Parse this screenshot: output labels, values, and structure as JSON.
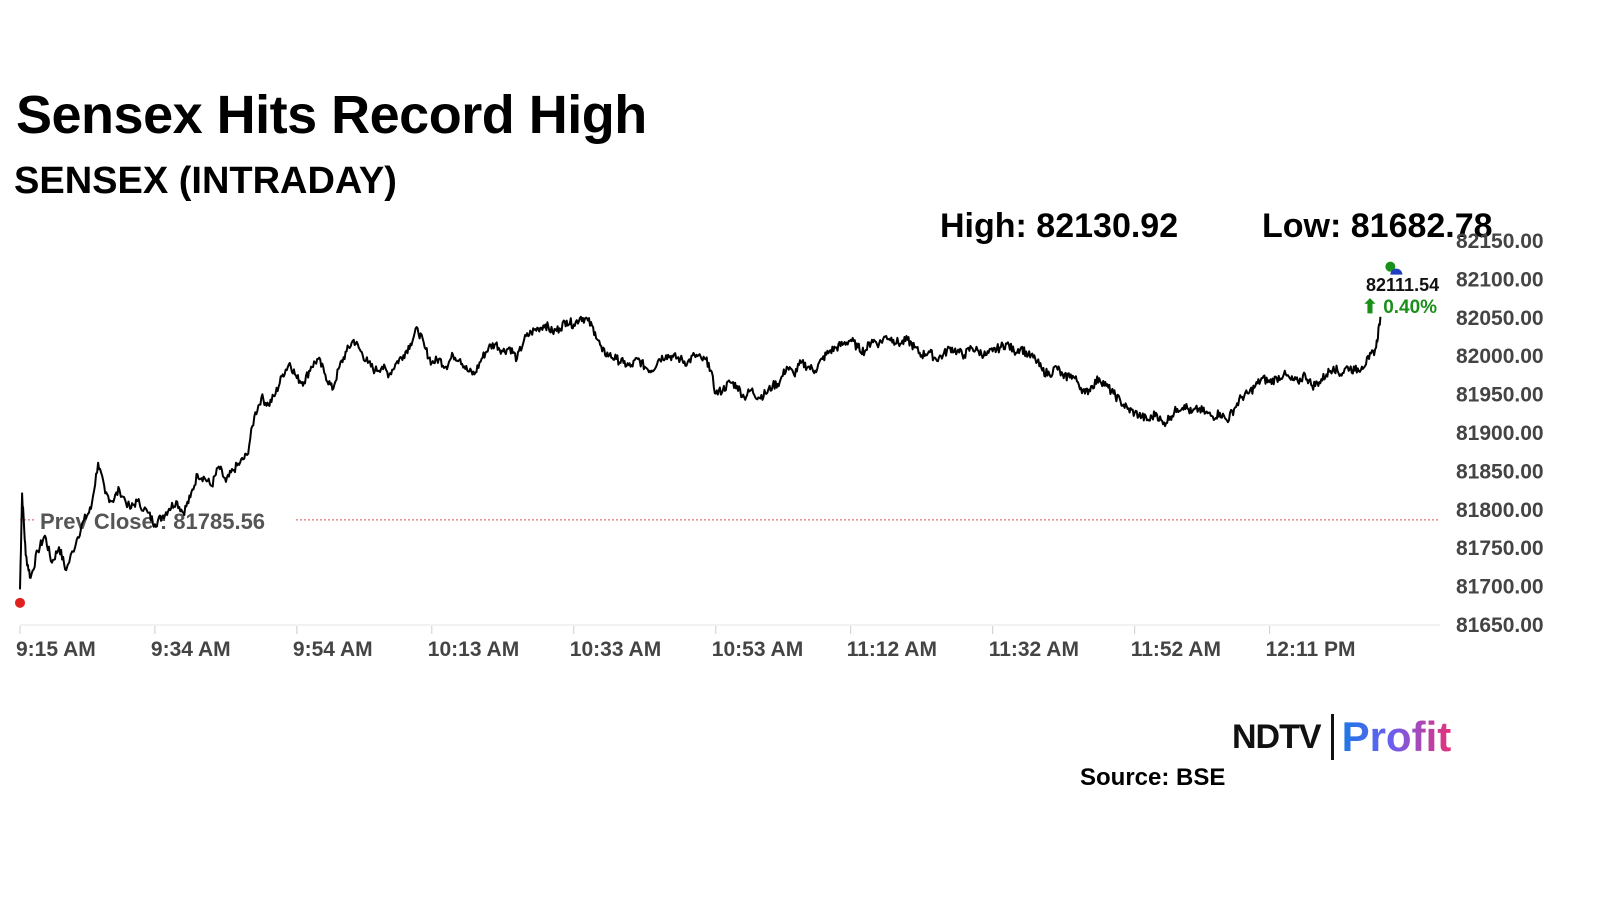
{
  "header": {
    "title": "Sensex Hits Record High",
    "subtitle": "SENSEX (INTRADAY)",
    "high": "High: 82130.92",
    "low": "Low: 81682.78"
  },
  "current": {
    "value": "82111.54",
    "change": "⬆ 0.40%"
  },
  "prev_close_label": "Prev Close : 81785.56",
  "footer": {
    "logo_ndtv": "NDTV",
    "logo_profit": "Profit",
    "source": "Source: BSE"
  },
  "colors": {
    "line": "#000000",
    "prev_close": "#d9534f",
    "up": "#1a8f1a",
    "open_dot": "#e0201f",
    "last_dot_green": "#1a8f1a",
    "last_dot_blue": "#1f3fbf",
    "axis_text": "#444444"
  },
  "chart_data": {
    "type": "line",
    "title": "SENSEX (INTRADAY)",
    "xlabel": "",
    "ylabel": "",
    "ylim": [
      81650,
      82150
    ],
    "y_ticks": [
      "81650.00",
      "81700.00",
      "81750.00",
      "81800.00",
      "81850.00",
      "81900.00",
      "81950.00",
      "82000.00",
      "82050.00",
      "82100.00",
      "82150.00"
    ],
    "x_ticks": [
      "9:15 AM",
      "9:34 AM",
      "9:54 AM",
      "10:13 AM",
      "10:33 AM",
      "10:53 AM",
      "11:12 AM",
      "11:32 AM",
      "11:52 AM",
      "12:11 PM"
    ],
    "x_tick_minutes": [
      0,
      19,
      39,
      58,
      78,
      98,
      117,
      137,
      157,
      176
    ],
    "xlim_minutes": [
      0,
      200
    ],
    "prev_close": 81785.56,
    "high": 82130.92,
    "low": 81682.78,
    "last": 82111.54,
    "change_pct": 0.4,
    "series": [
      {
        "points": [
          [
            0,
            81695
          ],
          [
            0.3,
            81820
          ],
          [
            0.8,
            81740
          ],
          [
            1.5,
            81710
          ],
          [
            2.5,
            81745
          ],
          [
            3.5,
            81765
          ],
          [
            4.5,
            81730
          ],
          [
            5.5,
            81750
          ],
          [
            6.5,
            81720
          ],
          [
            8,
            81760
          ],
          [
            9,
            81785
          ],
          [
            10,
            81800
          ],
          [
            11,
            81860
          ],
          [
            12,
            81820
          ],
          [
            13,
            81810
          ],
          [
            14,
            81825
          ],
          [
            15.5,
            81800
          ],
          [
            16.5,
            81810
          ],
          [
            18,
            81795
          ],
          [
            19,
            81780
          ],
          [
            20,
            81790
          ],
          [
            21,
            81800
          ],
          [
            22,
            81810
          ],
          [
            23,
            81795
          ],
          [
            24,
            81815
          ],
          [
            25,
            81845
          ],
          [
            26,
            81840
          ],
          [
            27,
            81830
          ],
          [
            28,
            81855
          ],
          [
            29,
            81835
          ],
          [
            30,
            81850
          ],
          [
            31,
            81860
          ],
          [
            32,
            81870
          ],
          [
            33,
            81920
          ],
          [
            34,
            81945
          ],
          [
            35,
            81935
          ],
          [
            36,
            81950
          ],
          [
            37,
            81975
          ],
          [
            38,
            81990
          ],
          [
            39,
            81970
          ],
          [
            40,
            81965
          ],
          [
            41,
            81985
          ],
          [
            42,
            81995
          ],
          [
            43,
            81975
          ],
          [
            44,
            81955
          ],
          [
            45,
            81985
          ],
          [
            46,
            82005
          ],
          [
            47,
            82020
          ],
          [
            48,
            82005
          ],
          [
            49,
            81990
          ],
          [
            50,
            81980
          ],
          [
            51,
            81985
          ],
          [
            52,
            81975
          ],
          [
            53,
            81990
          ],
          [
            54,
            82000
          ],
          [
            55,
            82015
          ],
          [
            56,
            82035
          ],
          [
            57,
            82010
          ],
          [
            58,
            81990
          ],
          [
            59,
            81995
          ],
          [
            60,
            81985
          ],
          [
            61,
            82000
          ],
          [
            62,
            81995
          ],
          [
            63,
            81980
          ],
          [
            64,
            81975
          ],
          [
            65,
            81995
          ],
          [
            66,
            82010
          ],
          [
            67,
            82015
          ],
          [
            68,
            82005
          ],
          [
            69,
            82010
          ],
          [
            70,
            81995
          ],
          [
            71,
            82020
          ],
          [
            72,
            82030
          ],
          [
            73,
            82035
          ],
          [
            74,
            82040
          ],
          [
            75,
            82030
          ],
          [
            76,
            82035
          ],
          [
            77,
            82045
          ],
          [
            78,
            82040
          ],
          [
            79,
            82050
          ],
          [
            80,
            82045
          ],
          [
            81,
            82030
          ],
          [
            82,
            82005
          ],
          [
            83,
            82000
          ],
          [
            84,
            81995
          ],
          [
            85,
            81990
          ],
          [
            86,
            81985
          ],
          [
            87,
            81995
          ],
          [
            88,
            81985
          ],
          [
            89,
            81980
          ],
          [
            90,
            81995
          ],
          [
            91,
            82000
          ],
          [
            92,
            81998
          ],
          [
            93,
            81995
          ],
          [
            94,
            81990
          ],
          [
            95,
            82000
          ],
          [
            96,
            81995
          ],
          [
            97,
            81990
          ],
          [
            98,
            81950
          ],
          [
            99,
            81955
          ],
          [
            100,
            81965
          ],
          [
            101,
            81960
          ],
          [
            102,
            81945
          ],
          [
            103,
            81955
          ],
          [
            104,
            81945
          ],
          [
            105,
            81950
          ],
          [
            106,
            81960
          ],
          [
            107,
            81965
          ],
          [
            108,
            81985
          ],
          [
            109,
            81975
          ],
          [
            110,
            81990
          ],
          [
            111,
            81985
          ],
          [
            112,
            81980
          ],
          [
            113,
            81995
          ],
          [
            114,
            82005
          ],
          [
            115,
            82010
          ],
          [
            116,
            82015
          ],
          [
            117,
            82020
          ],
          [
            118,
            82010
          ],
          [
            119,
            82005
          ],
          [
            120,
            82020
          ],
          [
            121,
            82015
          ],
          [
            122,
            82025
          ],
          [
            123,
            82020
          ],
          [
            124,
            82015
          ],
          [
            125,
            82020
          ],
          [
            126,
            82010
          ],
          [
            127,
            82000
          ],
          [
            128,
            82005
          ],
          [
            129,
            81995
          ],
          [
            130,
            82000
          ],
          [
            131,
            82010
          ],
          [
            132,
            82005
          ],
          [
            133,
            82000
          ],
          [
            134,
            82010
          ],
          [
            135,
            82005
          ],
          [
            136,
            82000
          ],
          [
            137,
            82005
          ],
          [
            138,
            82010
          ],
          [
            139,
            82015
          ],
          [
            140,
            82005
          ],
          [
            141,
            82010
          ],
          [
            142,
            82000
          ],
          [
            143,
            81995
          ],
          [
            144,
            81980
          ],
          [
            145,
            81975
          ],
          [
            146,
            81985
          ],
          [
            147,
            81970
          ],
          [
            148,
            81975
          ],
          [
            149,
            81965
          ],
          [
            150,
            81950
          ],
          [
            151,
            81960
          ],
          [
            152,
            81970
          ],
          [
            153,
            81960
          ],
          [
            154,
            81950
          ],
          [
            155,
            81940
          ],
          [
            156,
            81930
          ],
          [
            157,
            81925
          ],
          [
            158,
            81920
          ],
          [
            159,
            81915
          ],
          [
            160,
            81925
          ],
          [
            161,
            81910
          ],
          [
            162,
            81920
          ],
          [
            163,
            81930
          ],
          [
            164,
            81935
          ],
          [
            165,
            81925
          ],
          [
            166,
            81930
          ],
          [
            167,
            81925
          ],
          [
            168,
            81920
          ],
          [
            169,
            81925
          ],
          [
            170,
            81915
          ],
          [
            171,
            81930
          ],
          [
            172,
            81945
          ],
          [
            173,
            81950
          ],
          [
            174,
            81960
          ],
          [
            175,
            81970
          ],
          [
            176,
            81965
          ],
          [
            177,
            81970
          ],
          [
            178,
            81975
          ],
          [
            179,
            81968
          ],
          [
            180,
            81965
          ],
          [
            181,
            81975
          ],
          [
            182,
            81960
          ],
          [
            183,
            81965
          ],
          [
            184,
            81975
          ],
          [
            185,
            81985
          ],
          [
            186,
            81975
          ],
          [
            187,
            81985
          ],
          [
            188,
            81980
          ],
          [
            189,
            81985
          ],
          [
            190,
            81995
          ],
          [
            191,
            82010
          ],
          [
            191.6,
            82050
          ]
        ]
      }
    ]
  }
}
